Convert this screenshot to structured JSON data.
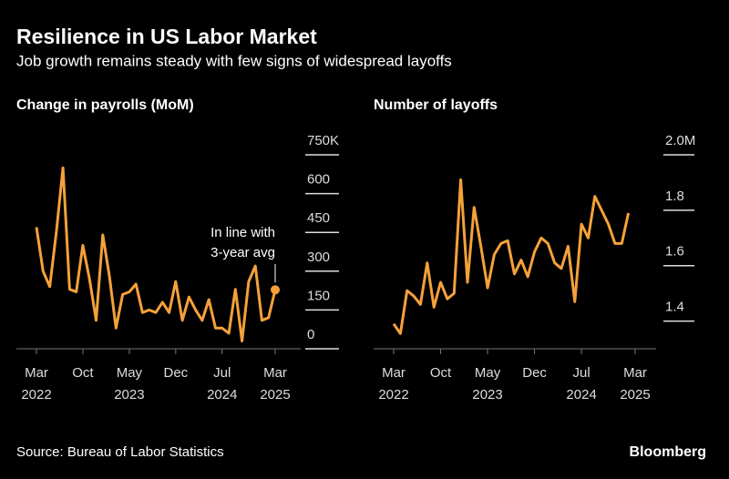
{
  "title": "Resilience in US Labor Market",
  "subtitle": "Job growth remains steady with few signs of widespread layoffs",
  "source": "Source: Bureau of Labor Statistics",
  "brand": "Bloomberg",
  "chart_data": [
    {
      "type": "line",
      "title": "Change in payrolls (MoM)",
      "categories": [
        "Mar 2022",
        null,
        null,
        null,
        null,
        null,
        null,
        "Oct",
        null,
        null,
        null,
        null,
        null,
        null,
        "May 2023",
        null,
        null,
        null,
        null,
        null,
        null,
        "Dec",
        null,
        null,
        null,
        null,
        null,
        null,
        "Jul 2024",
        null,
        null,
        null,
        null,
        null,
        null,
        null,
        "Mar 2025"
      ],
      "series": [
        {
          "name": "Change in payrolls",
          "color": "#f5a13a",
          "values": [
            470,
            300,
            240,
            450,
            700,
            230,
            220,
            400,
            270,
            110,
            440,
            280,
            80,
            210,
            220,
            250,
            140,
            150,
            140,
            180,
            140,
            260,
            110,
            200,
            150,
            110,
            190,
            80,
            80,
            60,
            230,
            30,
            260,
            320,
            110,
            120,
            228
          ]
        }
      ],
      "ylim": [
        0,
        750
      ],
      "yticks": [
        0,
        150,
        300,
        450,
        600,
        {
          "value": 750,
          "label": "750K"
        }
      ],
      "annotation": {
        "text": [
          "In line with",
          "3-year avg"
        ],
        "index": 36
      }
    },
    {
      "type": "line",
      "title": "Number of layoffs",
      "categories": [
        "Mar 2022",
        null,
        null,
        null,
        null,
        null,
        null,
        "Oct",
        null,
        null,
        null,
        null,
        null,
        null,
        "May 2023",
        null,
        null,
        null,
        null,
        null,
        null,
        "Dec",
        null,
        null,
        null,
        null,
        null,
        null,
        "Jul 2024",
        null,
        null,
        null,
        null,
        null,
        null,
        null,
        "Mar 2025"
      ],
      "series": [
        {
          "name": "Number of layoffs",
          "color": "#f5a13a",
          "values": [
            1.39,
            1.355,
            1.51,
            1.49,
            1.46,
            1.61,
            1.45,
            1.54,
            1.48,
            1.5,
            1.91,
            1.54,
            1.81,
            1.67,
            1.52,
            1.64,
            1.68,
            1.69,
            1.57,
            1.62,
            1.56,
            1.65,
            1.7,
            1.68,
            1.61,
            1.59,
            1.67,
            1.47,
            1.75,
            1.7,
            1.85,
            1.8,
            1.75,
            1.68,
            1.68,
            1.79,
            null
          ]
        }
      ],
      "ylim": [
        1.3,
        2.0
      ],
      "yticks": [
        1.4,
        1.6,
        1.8,
        {
          "value": 2.0,
          "label": "2.0M"
        }
      ]
    }
  ]
}
